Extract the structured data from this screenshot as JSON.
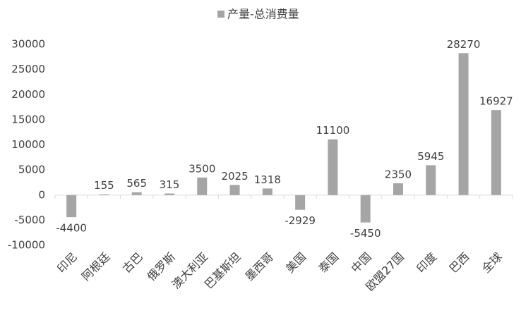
{
  "chart_data": {
    "type": "bar",
    "categories": [
      "印尼",
      "阿根廷",
      "古巴",
      "俄罗斯",
      "澳大利亚",
      "巴基斯坦",
      "墨西哥",
      "美国",
      "泰国",
      "中国",
      "欧盟27国",
      "印度",
      "巴西",
      "全球"
    ],
    "series": [
      {
        "name": "产量-总消费量",
        "color": "#a5a5a5",
        "values": [
          -4400,
          155,
          565,
          315,
          3500,
          2025,
          1318,
          -2929,
          11100,
          -5450,
          2350,
          5945,
          28270,
          16927
        ]
      }
    ],
    "ylim": [
      -10000,
      30000
    ],
    "yticks": [
      -10000,
      -5000,
      0,
      5000,
      10000,
      15000,
      20000,
      25000,
      30000
    ],
    "grid": false,
    "legend": "top"
  }
}
